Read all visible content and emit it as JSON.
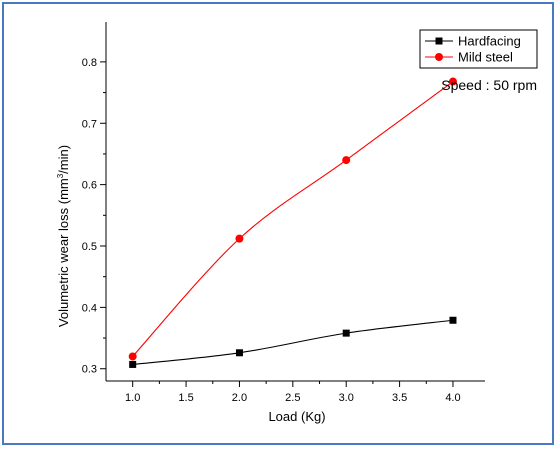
{
  "chart_data": {
    "type": "line",
    "x": [
      1.0,
      2.0,
      3.0,
      4.0
    ],
    "series": [
      {
        "name": "Hardfacing",
        "values": [
          0.307,
          0.326,
          0.358,
          0.379
        ],
        "color": "#000000",
        "marker": "square"
      },
      {
        "name": "Mild steel",
        "values": [
          0.32,
          0.512,
          0.64,
          0.768
        ],
        "color": "#ff0000",
        "marker": "circle"
      }
    ],
    "xlabel": "Load (Kg)",
    "ylabel_prefix": "Volumetric wear loss (mm",
    "ylabel_sup": "3",
    "ylabel_suffix": "/min)",
    "xlim": [
      0.75,
      4.3
    ],
    "ylim": [
      0.28,
      0.865
    ],
    "xticks": [
      1.0,
      1.5,
      2.0,
      2.5,
      3.0,
      3.5,
      4.0
    ],
    "yticks": [
      0.3,
      0.4,
      0.5,
      0.6,
      0.7,
      0.8
    ],
    "annotation": "Speed : 50 rpm",
    "legend_position": "top-right",
    "grid": false
  }
}
